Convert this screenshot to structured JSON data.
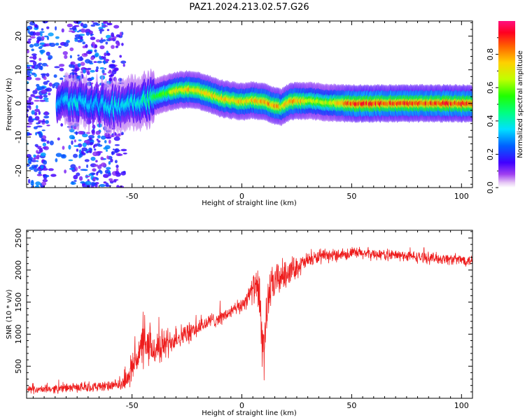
{
  "title": "PAZ1.2024.213.02.57.G26",
  "chart_data": [
    {
      "type": "heatmap",
      "title": "PAZ1.2024.213.02.57.G26",
      "xlabel": "Height of straight line (km)",
      "ylabel": "Frequency (Hz)",
      "xlim": [
        -98,
        105
      ],
      "ylim": [
        -25,
        24.5
      ],
      "x_ticks": [
        -50,
        0,
        50,
        100
      ],
      "y_ticks": [
        -20,
        -10,
        0,
        10,
        20
      ],
      "x_tick_labels": [
        "-50",
        "0",
        "50",
        "100"
      ],
      "y_tick_labels": [
        "-20",
        "-10",
        "0",
        "10",
        "20"
      ],
      "colorbar": {
        "label": "Normalized spectral amplitude",
        "range": [
          0,
          1
        ],
        "ticks": [
          0.0,
          0.2,
          0.4,
          0.6,
          0.8
        ],
        "tick_labels": [
          "0.0",
          "0.2",
          "0.4",
          "0.6",
          "0.8"
        ],
        "colormap": "gist_rainbow"
      },
      "ridge": {
        "x": [
          -82,
          -75,
          -70,
          -65,
          -60,
          -55,
          -50,
          -45,
          -40,
          -35,
          -30,
          -25,
          -20,
          -15,
          -10,
          -5,
          0,
          5,
          10,
          15,
          18,
          22,
          25,
          30,
          40,
          50,
          60,
          70,
          80,
          90,
          100,
          105
        ],
        "y": [
          0.5,
          1.0,
          0.5,
          -0.5,
          -0.8,
          -0.5,
          0.5,
          1.0,
          1.8,
          3.0,
          3.8,
          4.2,
          3.8,
          2.8,
          1.5,
          1.0,
          0.5,
          1.0,
          0.5,
          -0.8,
          -1.0,
          0.5,
          0.8,
          0.8,
          0.2,
          0.0,
          0.0,
          0.0,
          0.0,
          0.0,
          0.0,
          0.0
        ],
        "amplitude": [
          0.35,
          0.4,
          0.35,
          0.35,
          0.4,
          0.4,
          0.4,
          0.45,
          0.55,
          0.6,
          0.75,
          0.8,
          0.8,
          0.8,
          0.8,
          0.8,
          0.8,
          0.8,
          0.85,
          0.85,
          0.8,
          0.85,
          0.85,
          0.7,
          0.7,
          0.95,
          0.95,
          0.95,
          0.95,
          0.95,
          0.95,
          0.95
        ]
      }
    },
    {
      "type": "line",
      "xlabel": "Height of straight line (km)",
      "ylabel": "SNR (10 * v/v)",
      "xlim": [
        -98,
        105
      ],
      "ylim": [
        0,
        2620
      ],
      "x_ticks": [
        -50,
        0,
        50,
        100
      ],
      "y_ticks": [
        500,
        1000,
        1500,
        2000,
        2500
      ],
      "x_tick_labels": [
        "-50",
        "0",
        "50",
        "100"
      ],
      "y_tick_labels": [
        "500",
        "1000",
        "1500",
        "2000",
        "2500"
      ],
      "series": [
        {
          "color": "#ee1c1c",
          "x": [
            -98,
            -90,
            -85,
            -80,
            -75,
            -70,
            -65,
            -60,
            -55,
            -52,
            -50,
            -47,
            -45,
            -42,
            -40,
            -37,
            -35,
            -32,
            -30,
            -27,
            -25,
            -22,
            -20,
            -17,
            -15,
            -12,
            -10,
            -7,
            -5,
            -2,
            0,
            2,
            4,
            6,
            8,
            9,
            10,
            11,
            12,
            14,
            16,
            18,
            20,
            22,
            25,
            28,
            30,
            35,
            40,
            45,
            50,
            55,
            60,
            65,
            70,
            75,
            80,
            85,
            90,
            95,
            100,
            105
          ],
          "y": [
            130,
            140,
            150,
            160,
            170,
            175,
            180,
            190,
            210,
            300,
            500,
            700,
            800,
            780,
            760,
            800,
            850,
            900,
            950,
            980,
            1000,
            1050,
            1100,
            1150,
            1200,
            1230,
            1250,
            1300,
            1350,
            1400,
            1450,
            1550,
            1650,
            1750,
            1600,
            1000,
            700,
            1200,
            1600,
            1750,
            1850,
            1900,
            1950,
            2000,
            2050,
            2100,
            2150,
            2200,
            2220,
            2250,
            2260,
            2260,
            2250,
            2240,
            2230,
            2220,
            2200,
            2190,
            2180,
            2170,
            2160,
            2150
          ],
          "noise": [
            60,
            60,
            70,
            70,
            70,
            80,
            80,
            80,
            90,
            150,
            250,
            350,
            350,
            300,
            300,
            280,
            260,
            200,
            200,
            180,
            170,
            150,
            140,
            130,
            120,
            120,
            110,
            110,
            110,
            120,
            120,
            150,
            180,
            250,
            400,
            600,
            500,
            400,
            350,
            300,
            280,
            260,
            250,
            200,
            180,
            150,
            120,
            110,
            100,
            100,
            100,
            100,
            90,
            90,
            90,
            90,
            90,
            90,
            90,
            90,
            90,
            90
          ]
        }
      ]
    }
  ]
}
